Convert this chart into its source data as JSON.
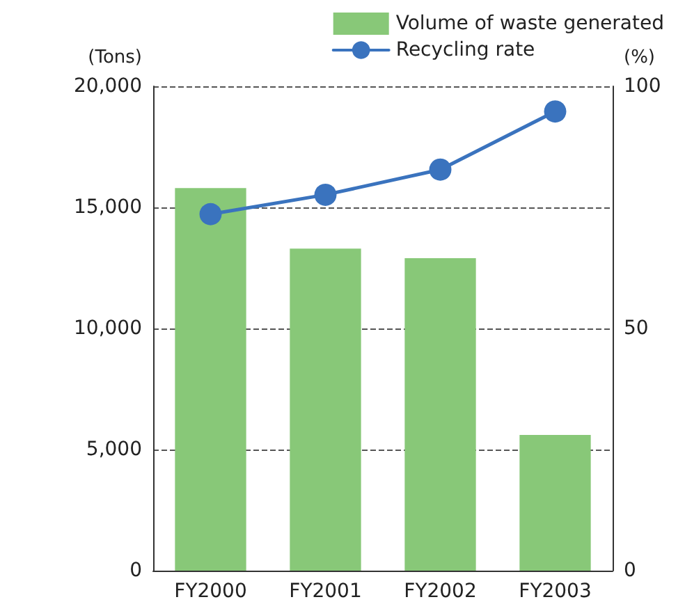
{
  "chart_data": {
    "type": "bar",
    "categories": [
      "FY2000",
      "FY2001",
      "FY2002",
      "FY2003"
    ],
    "series": [
      {
        "name": "Volume of waste generated",
        "color": "#88c878",
        "values": [
          15800,
          13300,
          12900,
          5600
        ]
      },
      {
        "name": "Recycling rate",
        "type": "line",
        "axis": "y2",
        "color": "#3a73be",
        "values": [
          73.6,
          77.6,
          82.8,
          94.8
        ]
      }
    ],
    "ylabel": "(Tons)",
    "y2label": "(%)",
    "ylim": [
      0,
      20000
    ],
    "yticks": [
      {
        "value": 0,
        "label": "0"
      },
      {
        "value": 5000,
        "label": "5,000"
      },
      {
        "value": 10000,
        "label": "10,000"
      },
      {
        "value": 15000,
        "label": "15,000"
      },
      {
        "value": 20000,
        "label": "20,000"
      }
    ],
    "y2lim": [
      0,
      100
    ],
    "y2ticks": [
      0,
      50,
      100
    ],
    "grid": "y",
    "legend": "top right",
    "marker": "circle",
    "line_style": "solid"
  }
}
